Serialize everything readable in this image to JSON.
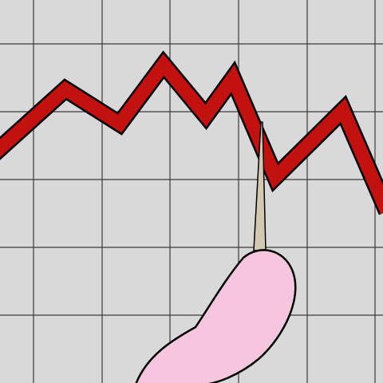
{
  "colors": {
    "background": "#d9d9d9",
    "grid_line": "#3a3a3a",
    "trend_fill": "#c1120f",
    "outline": "#000000",
    "toothpick": "#d3c9b0",
    "hand": "#f6c6df"
  },
  "icons": {
    "trend": "falling-zigzag-line",
    "pointer": "toothpick-icon",
    "hand": "cartoon-hand-icon"
  }
}
